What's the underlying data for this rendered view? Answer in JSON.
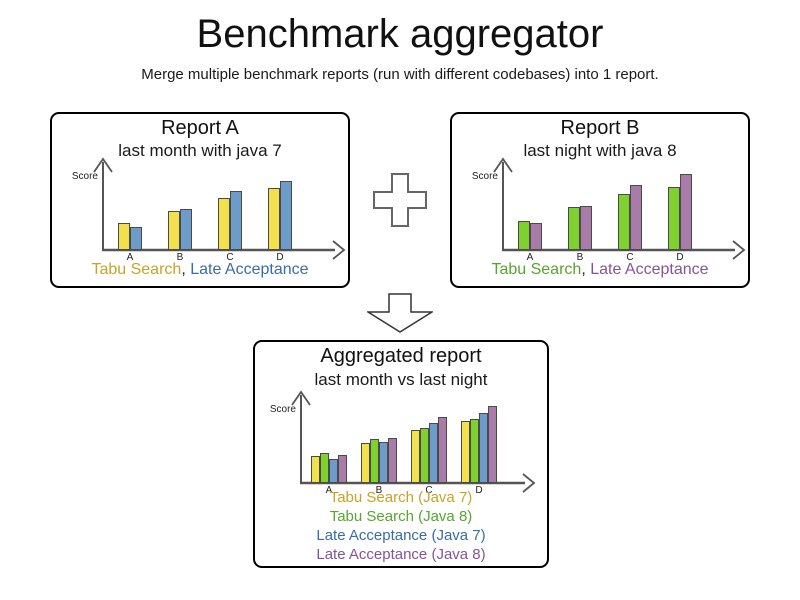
{
  "page": {
    "title": "Benchmark aggregator",
    "subtitle": "Merge multiple benchmark reports (run with different codebases) into 1 report."
  },
  "colors": {
    "bar_yellow": "#F2E14C",
    "bar_green": "#7FD130",
    "bar_blue": "#6D9CCB",
    "bar_purple": "#A87BA8",
    "bar_border": "#4A4A4A",
    "axis": "#555555",
    "legend_yellow": "#C9A227",
    "legend_green": "#55A62F",
    "legend_blue": "#3A6CA8",
    "legend_purple": "#84549B",
    "plus_outline": "#666666",
    "arrow_outline": "#333333",
    "text": "#1a1a1a"
  },
  "icons": {
    "plus_icon": "plus-operator",
    "down_arrow_icon": "merge-result-arrow"
  },
  "chart_data": [
    {
      "id": "report-a",
      "type": "bar",
      "title": "Report A",
      "subtitle": "last month with java 7",
      "ylabel": "Score",
      "xlabel": "",
      "categories": [
        "A",
        "B",
        "C",
        "D"
      ],
      "ylim": [
        0,
        95
      ],
      "grid": false,
      "series": [
        {
          "name": "Tabu Search",
          "color_key": "yellow",
          "values": [
            27,
            39,
            52,
            62
          ]
        },
        {
          "name": "Late Acceptance",
          "color_key": "blue",
          "values": [
            23,
            41,
            59,
            69
          ]
        }
      ],
      "legend": {
        "position": "bottom",
        "layout": "inline",
        "separator": ", ",
        "items": [
          {
            "label": "Tabu Search",
            "color_key": "legend_yellow"
          },
          {
            "label": "Late Acceptance",
            "color_key": "legend_blue"
          }
        ]
      }
    },
    {
      "id": "report-b",
      "type": "bar",
      "title": "Report B",
      "subtitle": "last night with java 8",
      "ylabel": "Score",
      "xlabel": "",
      "categories": [
        "A",
        "B",
        "C",
        "D"
      ],
      "ylim": [
        0,
        95
      ],
      "grid": false,
      "series": [
        {
          "name": "Tabu Search",
          "color_key": "green",
          "values": [
            29,
            43,
            56,
            63
          ]
        },
        {
          "name": "Late Acceptance",
          "color_key": "purple",
          "values": [
            27,
            44,
            65,
            76
          ]
        }
      ],
      "legend": {
        "position": "bottom",
        "layout": "inline",
        "separator": ", ",
        "items": [
          {
            "label": "Tabu Search",
            "color_key": "legend_green"
          },
          {
            "label": "Late Acceptance",
            "color_key": "legend_purple"
          }
        ]
      }
    },
    {
      "id": "aggregated-report",
      "type": "bar",
      "title": "Aggregated report",
      "subtitle": "last month vs last night",
      "ylabel": "Score",
      "xlabel": "",
      "categories": [
        "A",
        "B",
        "C",
        "D"
      ],
      "ylim": [
        0,
        95
      ],
      "grid": false,
      "series": [
        {
          "name": "Tabu Search (Java 7)",
          "color_key": "yellow",
          "values": [
            27,
            40,
            53,
            62
          ]
        },
        {
          "name": "Tabu Search (Java 8)",
          "color_key": "green",
          "values": [
            30,
            44,
            55,
            64
          ]
        },
        {
          "name": "Late Acceptance (Java 7)",
          "color_key": "blue",
          "values": [
            24,
            41,
            60,
            70
          ]
        },
        {
          "name": "Late Acceptance (Java 8)",
          "color_key": "purple",
          "values": [
            28,
            45,
            66,
            77
          ]
        }
      ],
      "legend": {
        "position": "bottom",
        "layout": "stacked",
        "separator": "",
        "items": [
          {
            "label": "Tabu Search (Java 7)",
            "color_key": "legend_yellow"
          },
          {
            "label": "Tabu Search (Java 8)",
            "color_key": "legend_green"
          },
          {
            "label": "Late Acceptance (Java 7)",
            "color_key": "legend_blue"
          },
          {
            "label": "Late Acceptance (Java 8)",
            "color_key": "legend_purple"
          }
        ]
      }
    }
  ]
}
